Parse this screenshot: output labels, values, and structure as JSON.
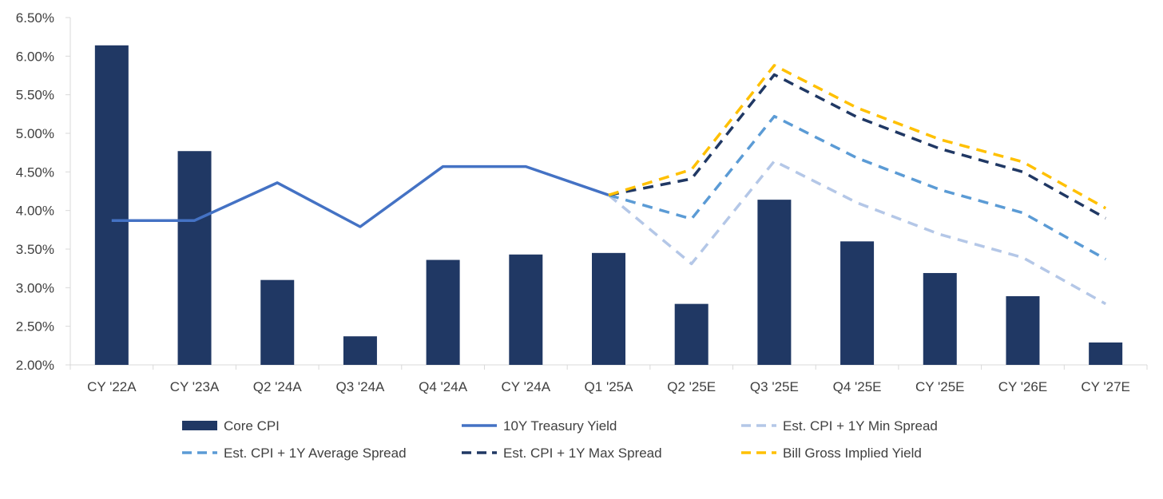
{
  "chart_data": {
    "type": "bar",
    "title": "",
    "xlabel": "",
    "ylabel": "",
    "ylim": [
      0.02,
      0.065
    ],
    "yticks": [
      0.02,
      0.025,
      0.03,
      0.035,
      0.04,
      0.045,
      0.05,
      0.055,
      0.06,
      0.065
    ],
    "ytick_labels": [
      "2.00%",
      "2.50%",
      "3.00%",
      "3.50%",
      "4.00%",
      "4.50%",
      "5.00%",
      "5.50%",
      "6.00%",
      "6.50%"
    ],
    "grid": false,
    "legend_position": "bottom",
    "categories": [
      "CY '22A",
      "CY '23A",
      "Q2 '24A",
      "Q3 '24A",
      "Q4 '24A",
      "CY '24A",
      "Q1 '25A",
      "Q2 '25E",
      "Q3 '25E",
      "Q4 '25E",
      "CY '25E",
      "CY '26E",
      "CY '27E"
    ],
    "series": [
      {
        "name": "Core CPI",
        "kind": "bar",
        "color": "#203864",
        "values": [
          0.0614,
          0.0477,
          0.031,
          0.0237,
          0.0336,
          0.0343,
          0.0345,
          0.0279,
          0.0414,
          0.036,
          0.0319,
          0.0289,
          0.0229
        ]
      },
      {
        "name": "10Y Treasury Yield",
        "kind": "line",
        "style": "solid",
        "color": "#4472C4",
        "values": [
          0.0387,
          0.0387,
          0.0436,
          0.0379,
          0.0457,
          0.0457,
          0.042,
          null,
          null,
          null,
          null,
          null,
          null
        ]
      },
      {
        "name": "Est. CPI + 1Y Min Spread",
        "kind": "line",
        "style": "dashed",
        "color": "#B4C7E7",
        "values": [
          null,
          null,
          null,
          null,
          null,
          null,
          0.042,
          0.0331,
          0.0464,
          0.041,
          0.0369,
          0.0339,
          0.0279
        ]
      },
      {
        "name": "Est. CPI + 1Y Average Spread",
        "kind": "line",
        "style": "dashed",
        "color": "#5B9BD5",
        "values": [
          null,
          null,
          null,
          null,
          null,
          null,
          0.042,
          0.0389,
          0.0522,
          0.0468,
          0.0427,
          0.0397,
          0.0337
        ]
      },
      {
        "name": "Est. CPI + 1Y Max Spread",
        "kind": "line",
        "style": "dashed",
        "color": "#203864",
        "values": [
          null,
          null,
          null,
          null,
          null,
          null,
          0.042,
          0.0441,
          0.0576,
          0.0521,
          0.048,
          0.045,
          0.039
        ]
      },
      {
        "name": "Bill Gross Implied Yield",
        "kind": "line",
        "style": "dashed",
        "color": "#FFC000",
        "values": [
          null,
          null,
          null,
          null,
          null,
          null,
          0.042,
          0.0453,
          0.0588,
          0.0533,
          0.0492,
          0.0463,
          0.0403
        ]
      }
    ],
    "legend": {
      "order": [
        0,
        1,
        2,
        3,
        4,
        5
      ]
    }
  }
}
